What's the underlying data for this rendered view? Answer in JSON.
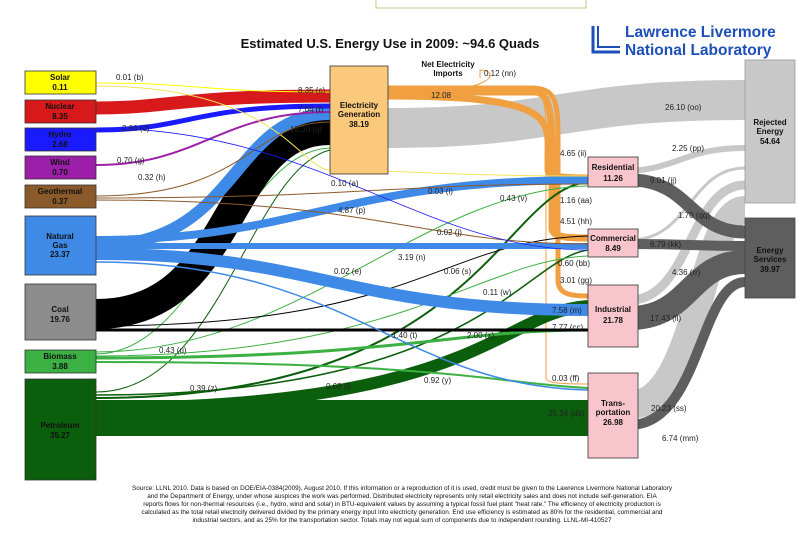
{
  "title": "Estimated U.S. Energy Use in 2009: ~94.6 Quads",
  "logo": {
    "line1": "Lawrence Livermore",
    "line2": "National Laboratory",
    "color": "#1d4fb8"
  },
  "sources": [
    {
      "name": "Solar",
      "value": "0.11",
      "color": "#ffff00"
    },
    {
      "name": "Nuclear",
      "value": "8.35",
      "color": "#d7191c"
    },
    {
      "name": "Hydro",
      "value": "2.68",
      "color": "#1a1aff"
    },
    {
      "name": "Wind",
      "value": "0.70",
      "color": "#9b1fa8"
    },
    {
      "name": "Geothermal",
      "value": "0.37",
      "color": "#8b5a2b"
    },
    {
      "name": "Natural Gas",
      "value": "23.37",
      "color": "#3f8ae6"
    },
    {
      "name": "Coal",
      "value": "19.76",
      "color": "#8c8c8c"
    },
    {
      "name": "Biomass",
      "value": "3.88",
      "color": "#3cb043"
    },
    {
      "name": "Petroleum",
      "value": "35.27",
      "color": "#0b5e0b"
    }
  ],
  "electricity": {
    "name": "Electricity Generation",
    "value": "38.19"
  },
  "net_imports": {
    "label": "Net Electricity Imports",
    "value": "0.12 (nn)"
  },
  "sectors": [
    {
      "name": "Residential",
      "value": "11.26"
    },
    {
      "name": "Commercial",
      "value": "8.49"
    },
    {
      "name": "Industrial",
      "value": "21.78"
    },
    {
      "name": "Trans-portation",
      "value": "26.98"
    }
  ],
  "sinks": [
    {
      "name": "Rejected Energy",
      "value": "54.64"
    },
    {
      "name": "Energy Services",
      "value": "39.97"
    }
  ],
  "flow_labels": {
    "b": "0.01 (b)",
    "c": "8.35 (c)",
    "f": "7.04 (f)",
    "q": "18.30 (q)",
    "d": "2.66 (d)",
    "g": "0.70 (g)",
    "h": "0.32 (h)",
    "elec": "12.08",
    "oo": "26.10 (oo)",
    "pp": "2.25 (pp)",
    "a": "0.10 (a)",
    "ii": "4.65 (ii)",
    "jj": "9.01 (jj)",
    "i": "0.03 (i)",
    "v": "0.43 (v)",
    "p": "4.87 (p)",
    "aa": "1.16 (aa)",
    "qq": "1.70 (qq)",
    "hh": "4.51 (hh)",
    "j": "0.02 (j)",
    "kk": "6.79 (kk)",
    "n": "3.19 (n)",
    "e": "0.02 (e)",
    "s": "0.06 (s)",
    "bb": "0.60 (bb)",
    "rr": "4.36 (rr)",
    "gg": "3.01 (gg)",
    "w": "0.11 (w)",
    "m": "7.58 (m)",
    "ll": "17.43 (ll)",
    "t": "1.40 (t)",
    "x": "2.00 (x)",
    "cc": "7.77 (cc)",
    "u": "0.43 (u)",
    "y": "0.92 (y)",
    "ff": "0.03 (ff)",
    "l": "0.69 (l)",
    "z": "0.39 (z)",
    "dd": "25.34 (dd)",
    "ss": "20.23 (ss)",
    "mm": "6.74 (mm)"
  },
  "footnote": [
    "Source: LLNL 2010. Data is based on DOE/EIA-0384(2009), August 2010. If this information or a reproduction of it is used, credit must be given to the Lawrence Livermore National Laboratory",
    "and the Department of Energy, under whose auspices the work was performed. Distributed electricity represents only retail electricity sales and does not include self-generation. EIA",
    "reports flows for non-thermal resources (i.e., hydro, wind and solar) in BTU-equivalent values by assuming a typical fossil fuel plant \"heat rate.\" The efficiency of electricity production is",
    "calculated as the total retail electricity delivered divided by the primary energy input into electricity generation. End use efficiency is estimated as 80% for the residential, commercial and",
    "industrial sectors, and as 25% for the transportation sector. Totals may not equal sum of components due to independent rounding. LLNL-MI-410527"
  ]
}
